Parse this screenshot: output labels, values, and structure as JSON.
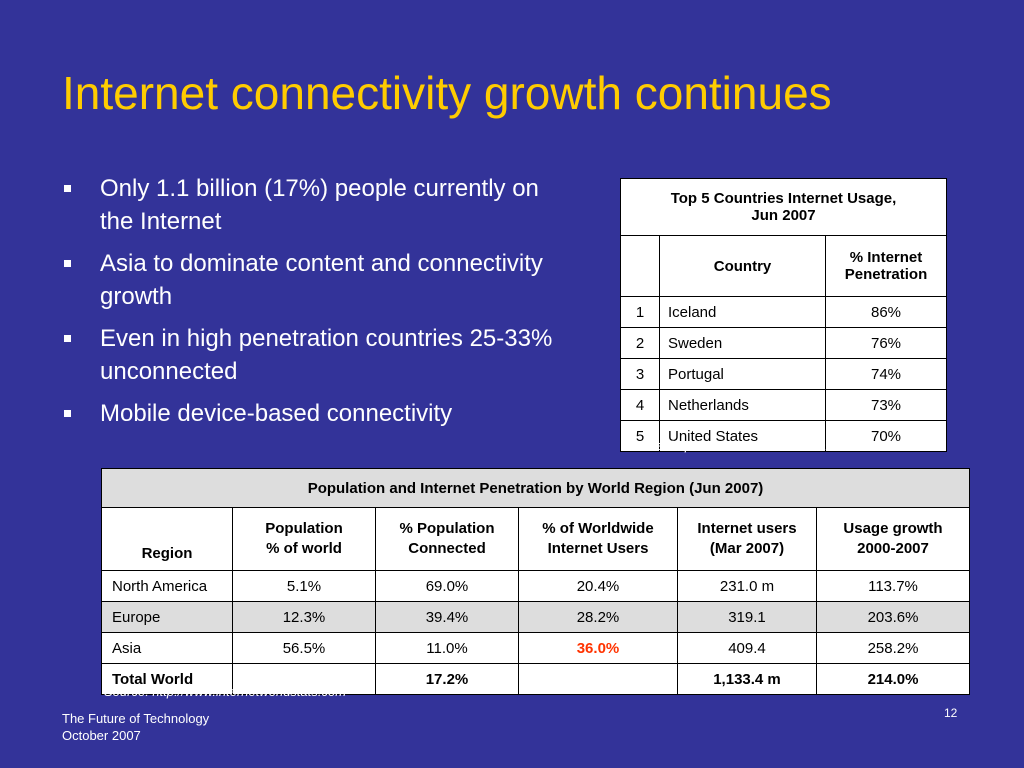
{
  "title": "Internet connectivity growth continues",
  "bullets": [
    "Only 1.1 billion (17%) people currently on the Internet",
    "Asia to dominate content and connectivity growth",
    "Even in high penetration countries 25-33% unconnected",
    "Mobile device-based connectivity"
  ],
  "top5_table": {
    "title_line1": "Top 5 Countries Internet Usage,",
    "title_line2": "Jun 2007",
    "header_country": "Country",
    "header_pct_line1": "% Internet",
    "header_pct_line2": "Penetration",
    "rows": [
      {
        "rank": "1",
        "country": "Iceland",
        "pct": "86%"
      },
      {
        "rank": "2",
        "country": "Sweden",
        "pct": "76%"
      },
      {
        "rank": "3",
        "country": "Portugal",
        "pct": "74%"
      },
      {
        "rank": "4",
        "country": "Netherlands",
        "pct": "73%"
      },
      {
        "rank": "5",
        "country": "United States",
        "pct": "70%"
      }
    ],
    "source": "Source: http://www.internetworldstats.com"
  },
  "region_table": {
    "title": "Population and Internet Penetration by World Region (Jun 2007)",
    "headers": [
      {
        "line1": "",
        "line2": "Region"
      },
      {
        "line1": "Population",
        "line2": "% of world"
      },
      {
        "line1": "% Population",
        "line2": "Connected"
      },
      {
        "line1": "% of Worldwide",
        "line2": "Internet Users"
      },
      {
        "line1": "Internet users",
        "line2": "(Mar 2007)"
      },
      {
        "line1": "Usage growth",
        "line2": "2000-2007"
      }
    ],
    "rows": [
      {
        "region": "North America",
        "pop": "5.1%",
        "connected": "69.0%",
        "worldwide": "20.4%",
        "users": "231.0 m",
        "growth": "113.7%"
      },
      {
        "region": "Europe",
        "pop": "12.3%",
        "connected": "39.4%",
        "worldwide": "28.2%",
        "users": "319.1",
        "growth": "203.6%"
      },
      {
        "region": "Asia",
        "pop": "56.5%",
        "connected": "11.0%",
        "worldwide": "36.0%",
        "users": "409.4",
        "growth": "258.2%"
      },
      {
        "region": "Total World",
        "pop": "",
        "connected": "17.2%",
        "worldwide": "",
        "users": "1,133.4 m",
        "growth": "214.0%"
      }
    ],
    "source": "Source: http://www.internetworldstats.com"
  },
  "footer": {
    "line1": "The Future of Technology",
    "line2": "October 2007",
    "page_number": "12"
  },
  "colors": {
    "background": "#333399",
    "title": "#ffcc00",
    "highlight": "#ff3300"
  }
}
